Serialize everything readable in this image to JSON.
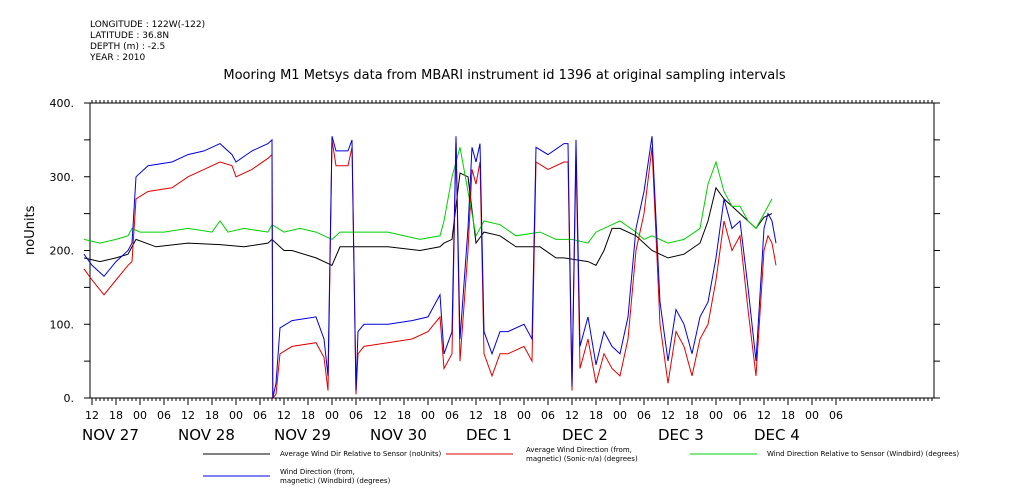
{
  "metadata": {
    "longitude": "LONGITUDE : 122W(-122)",
    "latitude": "LATITUDE : 36.8N",
    "depth": "DEPTH (m) : -2.5",
    "year": "YEAR : 2010"
  },
  "chart_data": {
    "type": "line",
    "title": "Mooring M1 Metsys data from MBARI instrument id 1396 at original sampling intervals",
    "ylabel": "noUnits",
    "ylim": [
      0,
      400
    ],
    "yticks": [
      0,
      100,
      200,
      300,
      400
    ],
    "ytick_labels": [
      "0.",
      "100.",
      "200.",
      "300.",
      "400."
    ],
    "xlim_hours": [
      0,
      190
    ],
    "hour_ticks": [
      {
        "t": 2,
        "label": "12"
      },
      {
        "t": 8,
        "label": "18"
      },
      {
        "t": 14,
        "label": "00"
      },
      {
        "t": 20,
        "label": "06"
      },
      {
        "t": 26,
        "label": "12"
      },
      {
        "t": 32,
        "label": "18"
      },
      {
        "t": 38,
        "label": "00"
      },
      {
        "t": 44,
        "label": "06"
      },
      {
        "t": 50,
        "label": "12"
      },
      {
        "t": 56,
        "label": "18"
      },
      {
        "t": 62,
        "label": "00"
      },
      {
        "t": 68,
        "label": "06"
      },
      {
        "t": 74,
        "label": "12"
      },
      {
        "t": 80,
        "label": "18"
      },
      {
        "t": 86,
        "label": "00"
      },
      {
        "t": 92,
        "label": "06"
      },
      {
        "t": 98,
        "label": "12"
      },
      {
        "t": 104,
        "label": "18"
      },
      {
        "t": 110,
        "label": "00"
      },
      {
        "t": 116,
        "label": "06"
      },
      {
        "t": 122,
        "label": "12"
      },
      {
        "t": 128,
        "label": "18"
      },
      {
        "t": 134,
        "label": "00"
      },
      {
        "t": 140,
        "label": "06"
      },
      {
        "t": 146,
        "label": "12"
      },
      {
        "t": 152,
        "label": "18"
      },
      {
        "t": 158,
        "label": "00"
      },
      {
        "t": 164,
        "label": "06"
      },
      {
        "t": 170,
        "label": "12"
      },
      {
        "t": 176,
        "label": "18"
      },
      {
        "t": 182,
        "label": "00"
      },
      {
        "t": 188,
        "label": "06"
      }
    ],
    "day_labels": [
      {
        "t": 2,
        "label": "NOV 27"
      },
      {
        "t": 26,
        "label": "NOV 28"
      },
      {
        "t": 50,
        "label": "NOV 29"
      },
      {
        "t": 74,
        "label": "NOV 30"
      },
      {
        "t": 98,
        "label": "DEC 1"
      },
      {
        "t": 122,
        "label": "DEC 2"
      },
      {
        "t": 146,
        "label": "DEC 3"
      },
      {
        "t": 170,
        "label": "DEC 4"
      }
    ],
    "series": [
      {
        "name": "Average Wind Dir Relative to Sensor (noUnits)",
        "color": "#000000",
        "points": [
          [
            0,
            190
          ],
          [
            4,
            185
          ],
          [
            8,
            190
          ],
          [
            11,
            195
          ],
          [
            13,
            215
          ],
          [
            18,
            205
          ],
          [
            26,
            210
          ],
          [
            34,
            208
          ],
          [
            40,
            205
          ],
          [
            46,
            210
          ],
          [
            47,
            215
          ],
          [
            50,
            200
          ],
          [
            52,
            200
          ],
          [
            58,
            190
          ],
          [
            62,
            180
          ],
          [
            64,
            205
          ],
          [
            70,
            205
          ],
          [
            76,
            205
          ],
          [
            84,
            200
          ],
          [
            89,
            205
          ],
          [
            90,
            210
          ],
          [
            92,
            215
          ],
          [
            94,
            305
          ],
          [
            96,
            300
          ],
          [
            98,
            210
          ],
          [
            100,
            225
          ],
          [
            104,
            220
          ],
          [
            108,
            205
          ],
          [
            114,
            205
          ],
          [
            118,
            190
          ],
          [
            120,
            190
          ],
          [
            126,
            185
          ],
          [
            128,
            180
          ],
          [
            130,
            200
          ],
          [
            132,
            230
          ],
          [
            134,
            230
          ],
          [
            138,
            220
          ],
          [
            140,
            210
          ],
          [
            142,
            200
          ],
          [
            146,
            190
          ],
          [
            150,
            195
          ],
          [
            154,
            210
          ],
          [
            156,
            240
          ],
          [
            158,
            285
          ],
          [
            160,
            270
          ],
          [
            162,
            260
          ],
          [
            164,
            250
          ],
          [
            166,
            240
          ],
          [
            168,
            230
          ],
          [
            170,
            245
          ],
          [
            172,
            250
          ]
        ]
      },
      {
        "name": "Average Wind Direction (from, magnetic) (Sonic-n/a) (degrees)",
        "color": "#e00000",
        "points": [
          [
            0,
            175
          ],
          [
            2,
            160
          ],
          [
            5,
            140
          ],
          [
            8,
            160
          ],
          [
            11,
            180
          ],
          [
            12,
            185
          ],
          [
            13,
            270
          ],
          [
            16,
            280
          ],
          [
            22,
            285
          ],
          [
            26,
            300
          ],
          [
            30,
            310
          ],
          [
            34,
            320
          ],
          [
            37,
            315
          ],
          [
            38,
            300
          ],
          [
            42,
            310
          ],
          [
            46,
            325
          ],
          [
            47,
            330
          ],
          [
            47.2,
            0
          ],
          [
            48,
            5
          ],
          [
            49,
            60
          ],
          [
            52,
            70
          ],
          [
            58,
            75
          ],
          [
            60,
            55
          ],
          [
            61,
            10
          ],
          [
            62,
            350
          ],
          [
            63,
            315
          ],
          [
            66,
            315
          ],
          [
            67,
            340
          ],
          [
            68,
            5
          ],
          [
            68.5,
            60
          ],
          [
            70,
            70
          ],
          [
            76,
            75
          ],
          [
            82,
            80
          ],
          [
            86,
            90
          ],
          [
            89,
            110
          ],
          [
            90,
            40
          ],
          [
            92,
            60
          ],
          [
            93,
            350
          ],
          [
            94,
            50
          ],
          [
            96,
            200
          ],
          [
            97,
            310
          ],
          [
            98,
            290
          ],
          [
            99,
            320
          ],
          [
            100,
            60
          ],
          [
            102,
            30
          ],
          [
            104,
            60
          ],
          [
            106,
            60
          ],
          [
            110,
            70
          ],
          [
            112,
            50
          ],
          [
            113,
            320
          ],
          [
            116,
            310
          ],
          [
            120,
            320
          ],
          [
            121,
            320
          ],
          [
            122,
            10
          ],
          [
            123,
            330
          ],
          [
            124,
            40
          ],
          [
            126,
            80
          ],
          [
            128,
            20
          ],
          [
            130,
            60
          ],
          [
            132,
            40
          ],
          [
            134,
            30
          ],
          [
            136,
            80
          ],
          [
            138,
            200
          ],
          [
            140,
            250
          ],
          [
            142,
            340
          ],
          [
            144,
            100
          ],
          [
            146,
            20
          ],
          [
            148,
            90
          ],
          [
            150,
            70
          ],
          [
            152,
            30
          ],
          [
            154,
            80
          ],
          [
            156,
            100
          ],
          [
            158,
            160
          ],
          [
            160,
            240
          ],
          [
            162,
            200
          ],
          [
            164,
            220
          ],
          [
            166,
            120
          ],
          [
            168,
            30
          ],
          [
            170,
            200
          ],
          [
            171,
            220
          ],
          [
            172,
            210
          ],
          [
            173,
            180
          ]
        ]
      },
      {
        "name": "Wind Direction Relative to Sensor (Windbird) (degrees)",
        "color": "#00d000",
        "points": [
          [
            0,
            215
          ],
          [
            4,
            210
          ],
          [
            8,
            215
          ],
          [
            11,
            220
          ],
          [
            12,
            230
          ],
          [
            14,
            225
          ],
          [
            20,
            225
          ],
          [
            26,
            230
          ],
          [
            32,
            225
          ],
          [
            34,
            240
          ],
          [
            36,
            225
          ],
          [
            40,
            230
          ],
          [
            46,
            225
          ],
          [
            47,
            235
          ],
          [
            50,
            225
          ],
          [
            54,
            230
          ],
          [
            58,
            225
          ],
          [
            62,
            215
          ],
          [
            64,
            225
          ],
          [
            70,
            225
          ],
          [
            76,
            225
          ],
          [
            84,
            215
          ],
          [
            89,
            220
          ],
          [
            90,
            240
          ],
          [
            92,
            300
          ],
          [
            94,
            340
          ],
          [
            96,
            280
          ],
          [
            98,
            220
          ],
          [
            100,
            240
          ],
          [
            104,
            235
          ],
          [
            108,
            220
          ],
          [
            114,
            225
          ],
          [
            118,
            215
          ],
          [
            122,
            215
          ],
          [
            126,
            210
          ],
          [
            128,
            225
          ],
          [
            132,
            235
          ],
          [
            134,
            240
          ],
          [
            138,
            225
          ],
          [
            140,
            215
          ],
          [
            142,
            220
          ],
          [
            146,
            210
          ],
          [
            150,
            215
          ],
          [
            154,
            230
          ],
          [
            156,
            290
          ],
          [
            158,
            320
          ],
          [
            160,
            280
          ],
          [
            162,
            260
          ],
          [
            164,
            260
          ],
          [
            166,
            240
          ],
          [
            168,
            230
          ],
          [
            170,
            250
          ],
          [
            172,
            270
          ]
        ]
      },
      {
        "name": "Wind Direction (from, magnetic) (Windbird) (degrees)",
        "color": "#0000e0",
        "points": [
          [
            0,
            195
          ],
          [
            2,
            180
          ],
          [
            5,
            165
          ],
          [
            8,
            185
          ],
          [
            11,
            200
          ],
          [
            12,
            210
          ],
          [
            13,
            300
          ],
          [
            16,
            315
          ],
          [
            22,
            320
          ],
          [
            26,
            330
          ],
          [
            30,
            335
          ],
          [
            34,
            345
          ],
          [
            37,
            330
          ],
          [
            38,
            320
          ],
          [
            42,
            335
          ],
          [
            46,
            345
          ],
          [
            47,
            350
          ],
          [
            47.2,
            0
          ],
          [
            48,
            20
          ],
          [
            49,
            95
          ],
          [
            52,
            105
          ],
          [
            58,
            110
          ],
          [
            60,
            80
          ],
          [
            61,
            30
          ],
          [
            62,
            355
          ],
          [
            63,
            335
          ],
          [
            66,
            335
          ],
          [
            67,
            350
          ],
          [
            68,
            10
          ],
          [
            68.5,
            90
          ],
          [
            70,
            100
          ],
          [
            76,
            100
          ],
          [
            82,
            105
          ],
          [
            86,
            110
          ],
          [
            89,
            140
          ],
          [
            90,
            60
          ],
          [
            92,
            90
          ],
          [
            93,
            355
          ],
          [
            94,
            80
          ],
          [
            96,
            230
          ],
          [
            97,
            340
          ],
          [
            98,
            320
          ],
          [
            99,
            345
          ],
          [
            100,
            90
          ],
          [
            102,
            60
          ],
          [
            104,
            90
          ],
          [
            106,
            90
          ],
          [
            110,
            100
          ],
          [
            112,
            80
          ],
          [
            113,
            340
          ],
          [
            116,
            330
          ],
          [
            120,
            345
          ],
          [
            121,
            345
          ],
          [
            122,
            15
          ],
          [
            123,
            350
          ],
          [
            124,
            70
          ],
          [
            126,
            110
          ],
          [
            128,
            45
          ],
          [
            130,
            90
          ],
          [
            132,
            70
          ],
          [
            134,
            60
          ],
          [
            136,
            110
          ],
          [
            138,
            230
          ],
          [
            140,
            280
          ],
          [
            142,
            355
          ],
          [
            144,
            130
          ],
          [
            146,
            50
          ],
          [
            148,
            120
          ],
          [
            150,
            100
          ],
          [
            152,
            60
          ],
          [
            154,
            110
          ],
          [
            156,
            130
          ],
          [
            158,
            190
          ],
          [
            160,
            270
          ],
          [
            162,
            230
          ],
          [
            164,
            240
          ],
          [
            166,
            150
          ],
          [
            168,
            50
          ],
          [
            170,
            230
          ],
          [
            171,
            250
          ],
          [
            172,
            240
          ],
          [
            173,
            210
          ]
        ]
      }
    ],
    "legend_placement": "bottom"
  },
  "legend": {
    "s0": "Average Wind Dir Relative to Sensor (noUnits)",
    "s1_line1": "Average Wind Direction (from,",
    "s1_line2": "magnetic) (Sonic-n/a) (degrees)",
    "s2": "Wind Direction Relative to Sensor (Windbird) (degrees)",
    "s3_line1": "Wind Direction (from,",
    "s3_line2": "magnetic) (Windbird) (degrees)"
  }
}
